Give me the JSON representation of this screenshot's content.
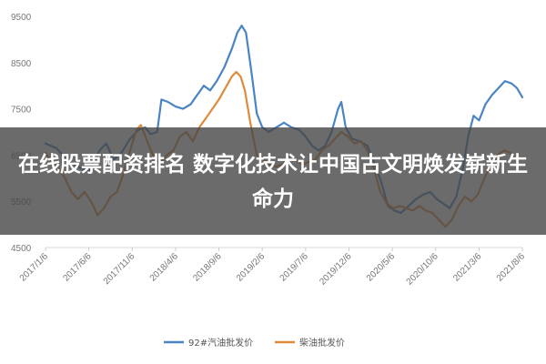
{
  "headline": "在线股票配资排名 数字化技术让中国古文明焕发崭新生命力",
  "chart_data": {
    "type": "line",
    "title": "",
    "xlabel": "",
    "ylabel": "",
    "ylim": [
      4500,
      9500
    ],
    "yticks": [
      4500,
      5500,
      6500,
      7500,
      8500,
      9500
    ],
    "xticks": [
      "2017/1/6",
      "2017/6/6",
      "2017/11/6",
      "2018/4/6",
      "2018/9/6",
      "2019/2/6",
      "2019/7/6",
      "2019/12/6",
      "2020/5/6",
      "2020/10/6",
      "2021/3/6",
      "2021/8/6"
    ],
    "grid": false,
    "legend_position": "bottom",
    "series": [
      {
        "name": "92#汽油批发价",
        "color": "#4a84c4",
        "points": [
          [
            0,
            6750
          ],
          [
            1,
            6650
          ],
          [
            2,
            6400
          ],
          [
            3,
            6250
          ],
          [
            4,
            6150
          ],
          [
            5,
            6600
          ],
          [
            5.6,
            6750
          ],
          [
            6.3,
            6400
          ],
          [
            7,
            6550
          ],
          [
            7.8,
            6850
          ],
          [
            8.6,
            7050
          ],
          [
            9.2,
            7100
          ],
          [
            9.7,
            6950
          ],
          [
            10.3,
            7000
          ],
          [
            10.7,
            7700
          ],
          [
            11.3,
            7650
          ],
          [
            12,
            7550
          ],
          [
            12.7,
            7500
          ],
          [
            13.4,
            7600
          ],
          [
            14,
            7800
          ],
          [
            14.6,
            8000
          ],
          [
            15.2,
            7900
          ],
          [
            15.8,
            8100
          ],
          [
            16.5,
            8400
          ],
          [
            17.2,
            8800
          ],
          [
            17.7,
            9150
          ],
          [
            18.1,
            9300
          ],
          [
            18.5,
            9150
          ],
          [
            19,
            8300
          ],
          [
            19.5,
            7400
          ],
          [
            20,
            7100
          ],
          [
            20.6,
            7000
          ],
          [
            21.3,
            7100
          ],
          [
            22,
            7200
          ],
          [
            22.7,
            7100
          ],
          [
            23.4,
            7050
          ],
          [
            24,
            6900
          ],
          [
            24.6,
            6700
          ],
          [
            25.2,
            6600
          ],
          [
            25.8,
            6700
          ],
          [
            26.4,
            7000
          ],
          [
            27,
            7500
          ],
          [
            27.3,
            7650
          ],
          [
            27.7,
            7100
          ],
          [
            28.3,
            6850
          ],
          [
            29,
            6800
          ],
          [
            29.7,
            6700
          ],
          [
            30.4,
            6300
          ],
          [
            31,
            5900
          ],
          [
            31.6,
            5400
          ],
          [
            32.2,
            5300
          ],
          [
            32.8,
            5250
          ],
          [
            33.5,
            5400
          ],
          [
            34.2,
            5550
          ],
          [
            34.9,
            5650
          ],
          [
            35.5,
            5700
          ],
          [
            36.1,
            5550
          ],
          [
            36.7,
            5450
          ],
          [
            37.3,
            5350
          ],
          [
            37.9,
            5600
          ],
          [
            38.5,
            6200
          ],
          [
            39,
            6900
          ],
          [
            39.5,
            7350
          ],
          [
            40,
            7250
          ],
          [
            40.6,
            7600
          ],
          [
            41.2,
            7800
          ],
          [
            41.8,
            7950
          ],
          [
            42.4,
            8100
          ],
          [
            43,
            8050
          ],
          [
            43.5,
            7950
          ],
          [
            44,
            7750
          ]
        ]
      },
      {
        "name": "柴油批发价",
        "color": "#e08a3c",
        "points": [
          [
            0,
            6550
          ],
          [
            0.6,
            6350
          ],
          [
            1.2,
            6200
          ],
          [
            1.8,
            6000
          ],
          [
            2.4,
            5700
          ],
          [
            3,
            5550
          ],
          [
            3.6,
            5700
          ],
          [
            4.2,
            5500
          ],
          [
            4.8,
            5200
          ],
          [
            5.4,
            5350
          ],
          [
            6,
            5600
          ],
          [
            6.6,
            5700
          ],
          [
            7.2,
            6100
          ],
          [
            7.8,
            6600
          ],
          [
            8.4,
            7050
          ],
          [
            8.8,
            7150
          ],
          [
            9.3,
            6850
          ],
          [
            9.9,
            6500
          ],
          [
            10.5,
            6300
          ],
          [
            11.2,
            6500
          ],
          [
            11.8,
            6600
          ],
          [
            12.4,
            6900
          ],
          [
            13,
            7000
          ],
          [
            13.6,
            6800
          ],
          [
            14.2,
            7100
          ],
          [
            14.8,
            7300
          ],
          [
            15.4,
            7500
          ],
          [
            16,
            7700
          ],
          [
            16.6,
            7950
          ],
          [
            17.2,
            8200
          ],
          [
            17.6,
            8300
          ],
          [
            18,
            8200
          ],
          [
            18.4,
            7900
          ],
          [
            18.9,
            7200
          ],
          [
            19.5,
            6500
          ],
          [
            20.1,
            6400
          ],
          [
            20.7,
            6300
          ],
          [
            21.3,
            6250
          ],
          [
            21.9,
            6300
          ],
          [
            22.5,
            6500
          ],
          [
            23.1,
            6400
          ],
          [
            23.7,
            6300
          ],
          [
            24.3,
            6350
          ],
          [
            24.9,
            6400
          ],
          [
            25.5,
            6600
          ],
          [
            26.1,
            6700
          ],
          [
            26.7,
            6850
          ],
          [
            27.3,
            7000
          ],
          [
            27.9,
            6900
          ],
          [
            28.5,
            6750
          ],
          [
            29.1,
            6800
          ],
          [
            29.7,
            6600
          ],
          [
            30.3,
            6200
          ],
          [
            30.9,
            5700
          ],
          [
            31.5,
            5450
          ],
          [
            32.1,
            5350
          ],
          [
            32.7,
            5400
          ],
          [
            33.3,
            5350
          ],
          [
            33.9,
            5300
          ],
          [
            34.5,
            5400
          ],
          [
            35.1,
            5300
          ],
          [
            35.7,
            5250
          ],
          [
            36.3,
            5100
          ],
          [
            36.9,
            4950
          ],
          [
            37.5,
            5100
          ],
          [
            38.1,
            5400
          ],
          [
            38.7,
            5600
          ],
          [
            39.3,
            5500
          ],
          [
            39.9,
            5650
          ],
          [
            40.5,
            6000
          ],
          [
            41.1,
            6300
          ],
          [
            41.7,
            6500
          ],
          [
            42.3,
            6600
          ],
          [
            42.9,
            6550
          ],
          [
            43.5,
            6400
          ],
          [
            44,
            6450
          ]
        ]
      }
    ]
  }
}
